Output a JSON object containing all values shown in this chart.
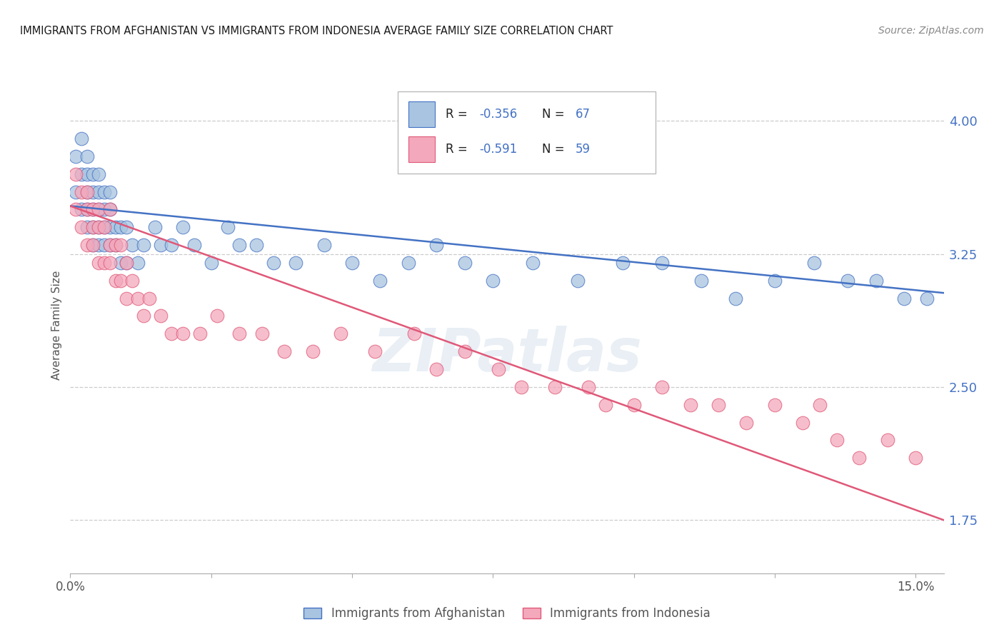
{
  "title": "IMMIGRANTS FROM AFGHANISTAN VS IMMIGRANTS FROM INDONESIA AVERAGE FAMILY SIZE CORRELATION CHART",
  "source": "Source: ZipAtlas.com",
  "ylabel": "Average Family Size",
  "legend_label_1": "Immigrants from Afghanistan",
  "legend_label_2": "Immigrants from Indonesia",
  "R1": -0.356,
  "N1": 67,
  "R2": -0.591,
  "N2": 59,
  "color_afghanistan": "#a8c4e0",
  "color_indonesia": "#f4a8bc",
  "line_color_afghanistan": "#4472c4",
  "line_color_indonesia": "#e05878",
  "title_color": "#1a1a1a",
  "source_color": "#888888",
  "right_tick_color": "#4472c4",
  "ylim": [
    1.45,
    4.25
  ],
  "xlim": [
    0.0,
    0.155
  ],
  "yticks_right": [
    1.75,
    2.5,
    3.25,
    4.0
  ],
  "xticks": [
    0.0,
    0.025,
    0.05,
    0.075,
    0.1,
    0.125,
    0.15
  ],
  "xtick_labels": [
    "0.0%",
    "",
    "",
    "",
    "",
    "",
    "15.0%"
  ],
  "background_color": "#ffffff",
  "grid_color": "#cccccc",
  "watermark": "ZIPatlas",
  "afghanistan_x": [
    0.001,
    0.001,
    0.002,
    0.002,
    0.002,
    0.003,
    0.003,
    0.003,
    0.003,
    0.003,
    0.004,
    0.004,
    0.004,
    0.004,
    0.004,
    0.005,
    0.005,
    0.005,
    0.005,
    0.005,
    0.006,
    0.006,
    0.006,
    0.006,
    0.007,
    0.007,
    0.007,
    0.007,
    0.008,
    0.008,
    0.009,
    0.009,
    0.01,
    0.01,
    0.011,
    0.012,
    0.013,
    0.015,
    0.016,
    0.018,
    0.02,
    0.022,
    0.025,
    0.028,
    0.03,
    0.033,
    0.036,
    0.04,
    0.045,
    0.05,
    0.055,
    0.06,
    0.065,
    0.07,
    0.075,
    0.082,
    0.09,
    0.098,
    0.105,
    0.112,
    0.118,
    0.125,
    0.132,
    0.138,
    0.143,
    0.148,
    0.152
  ],
  "afghanistan_y": [
    3.6,
    3.8,
    3.5,
    3.7,
    3.9,
    3.4,
    3.5,
    3.6,
    3.7,
    3.8,
    3.3,
    3.4,
    3.5,
    3.6,
    3.7,
    3.3,
    3.4,
    3.5,
    3.6,
    3.7,
    3.3,
    3.4,
    3.5,
    3.6,
    3.3,
    3.4,
    3.5,
    3.6,
    3.3,
    3.4,
    3.2,
    3.4,
    3.2,
    3.4,
    3.3,
    3.2,
    3.3,
    3.4,
    3.3,
    3.3,
    3.4,
    3.3,
    3.2,
    3.4,
    3.3,
    3.3,
    3.2,
    3.2,
    3.3,
    3.2,
    3.1,
    3.2,
    3.3,
    3.2,
    3.1,
    3.2,
    3.1,
    3.2,
    3.2,
    3.1,
    3.0,
    3.1,
    3.2,
    3.1,
    3.1,
    3.0,
    3.0
  ],
  "indonesia_x": [
    0.001,
    0.001,
    0.002,
    0.002,
    0.003,
    0.003,
    0.003,
    0.004,
    0.004,
    0.004,
    0.005,
    0.005,
    0.005,
    0.006,
    0.006,
    0.007,
    0.007,
    0.007,
    0.008,
    0.008,
    0.009,
    0.009,
    0.01,
    0.01,
    0.011,
    0.012,
    0.013,
    0.014,
    0.016,
    0.018,
    0.02,
    0.023,
    0.026,
    0.03,
    0.034,
    0.038,
    0.043,
    0.048,
    0.054,
    0.061,
    0.065,
    0.07,
    0.076,
    0.08,
    0.086,
    0.092,
    0.095,
    0.1,
    0.105,
    0.11,
    0.115,
    0.12,
    0.125,
    0.13,
    0.133,
    0.136,
    0.14,
    0.145,
    0.15
  ],
  "indonesia_y": [
    3.5,
    3.7,
    3.4,
    3.6,
    3.3,
    3.5,
    3.6,
    3.3,
    3.4,
    3.5,
    3.2,
    3.4,
    3.5,
    3.2,
    3.4,
    3.2,
    3.3,
    3.5,
    3.1,
    3.3,
    3.1,
    3.3,
    3.0,
    3.2,
    3.1,
    3.0,
    2.9,
    3.0,
    2.9,
    2.8,
    2.8,
    2.8,
    2.9,
    2.8,
    2.8,
    2.7,
    2.7,
    2.8,
    2.7,
    2.8,
    2.6,
    2.7,
    2.6,
    2.5,
    2.5,
    2.5,
    2.4,
    2.4,
    2.5,
    2.4,
    2.4,
    2.3,
    2.4,
    2.3,
    2.4,
    2.2,
    2.1,
    2.2,
    2.1
  ],
  "trend_afg": [
    3.52,
    3.03
  ],
  "trend_ind": [
    3.52,
    1.75
  ]
}
